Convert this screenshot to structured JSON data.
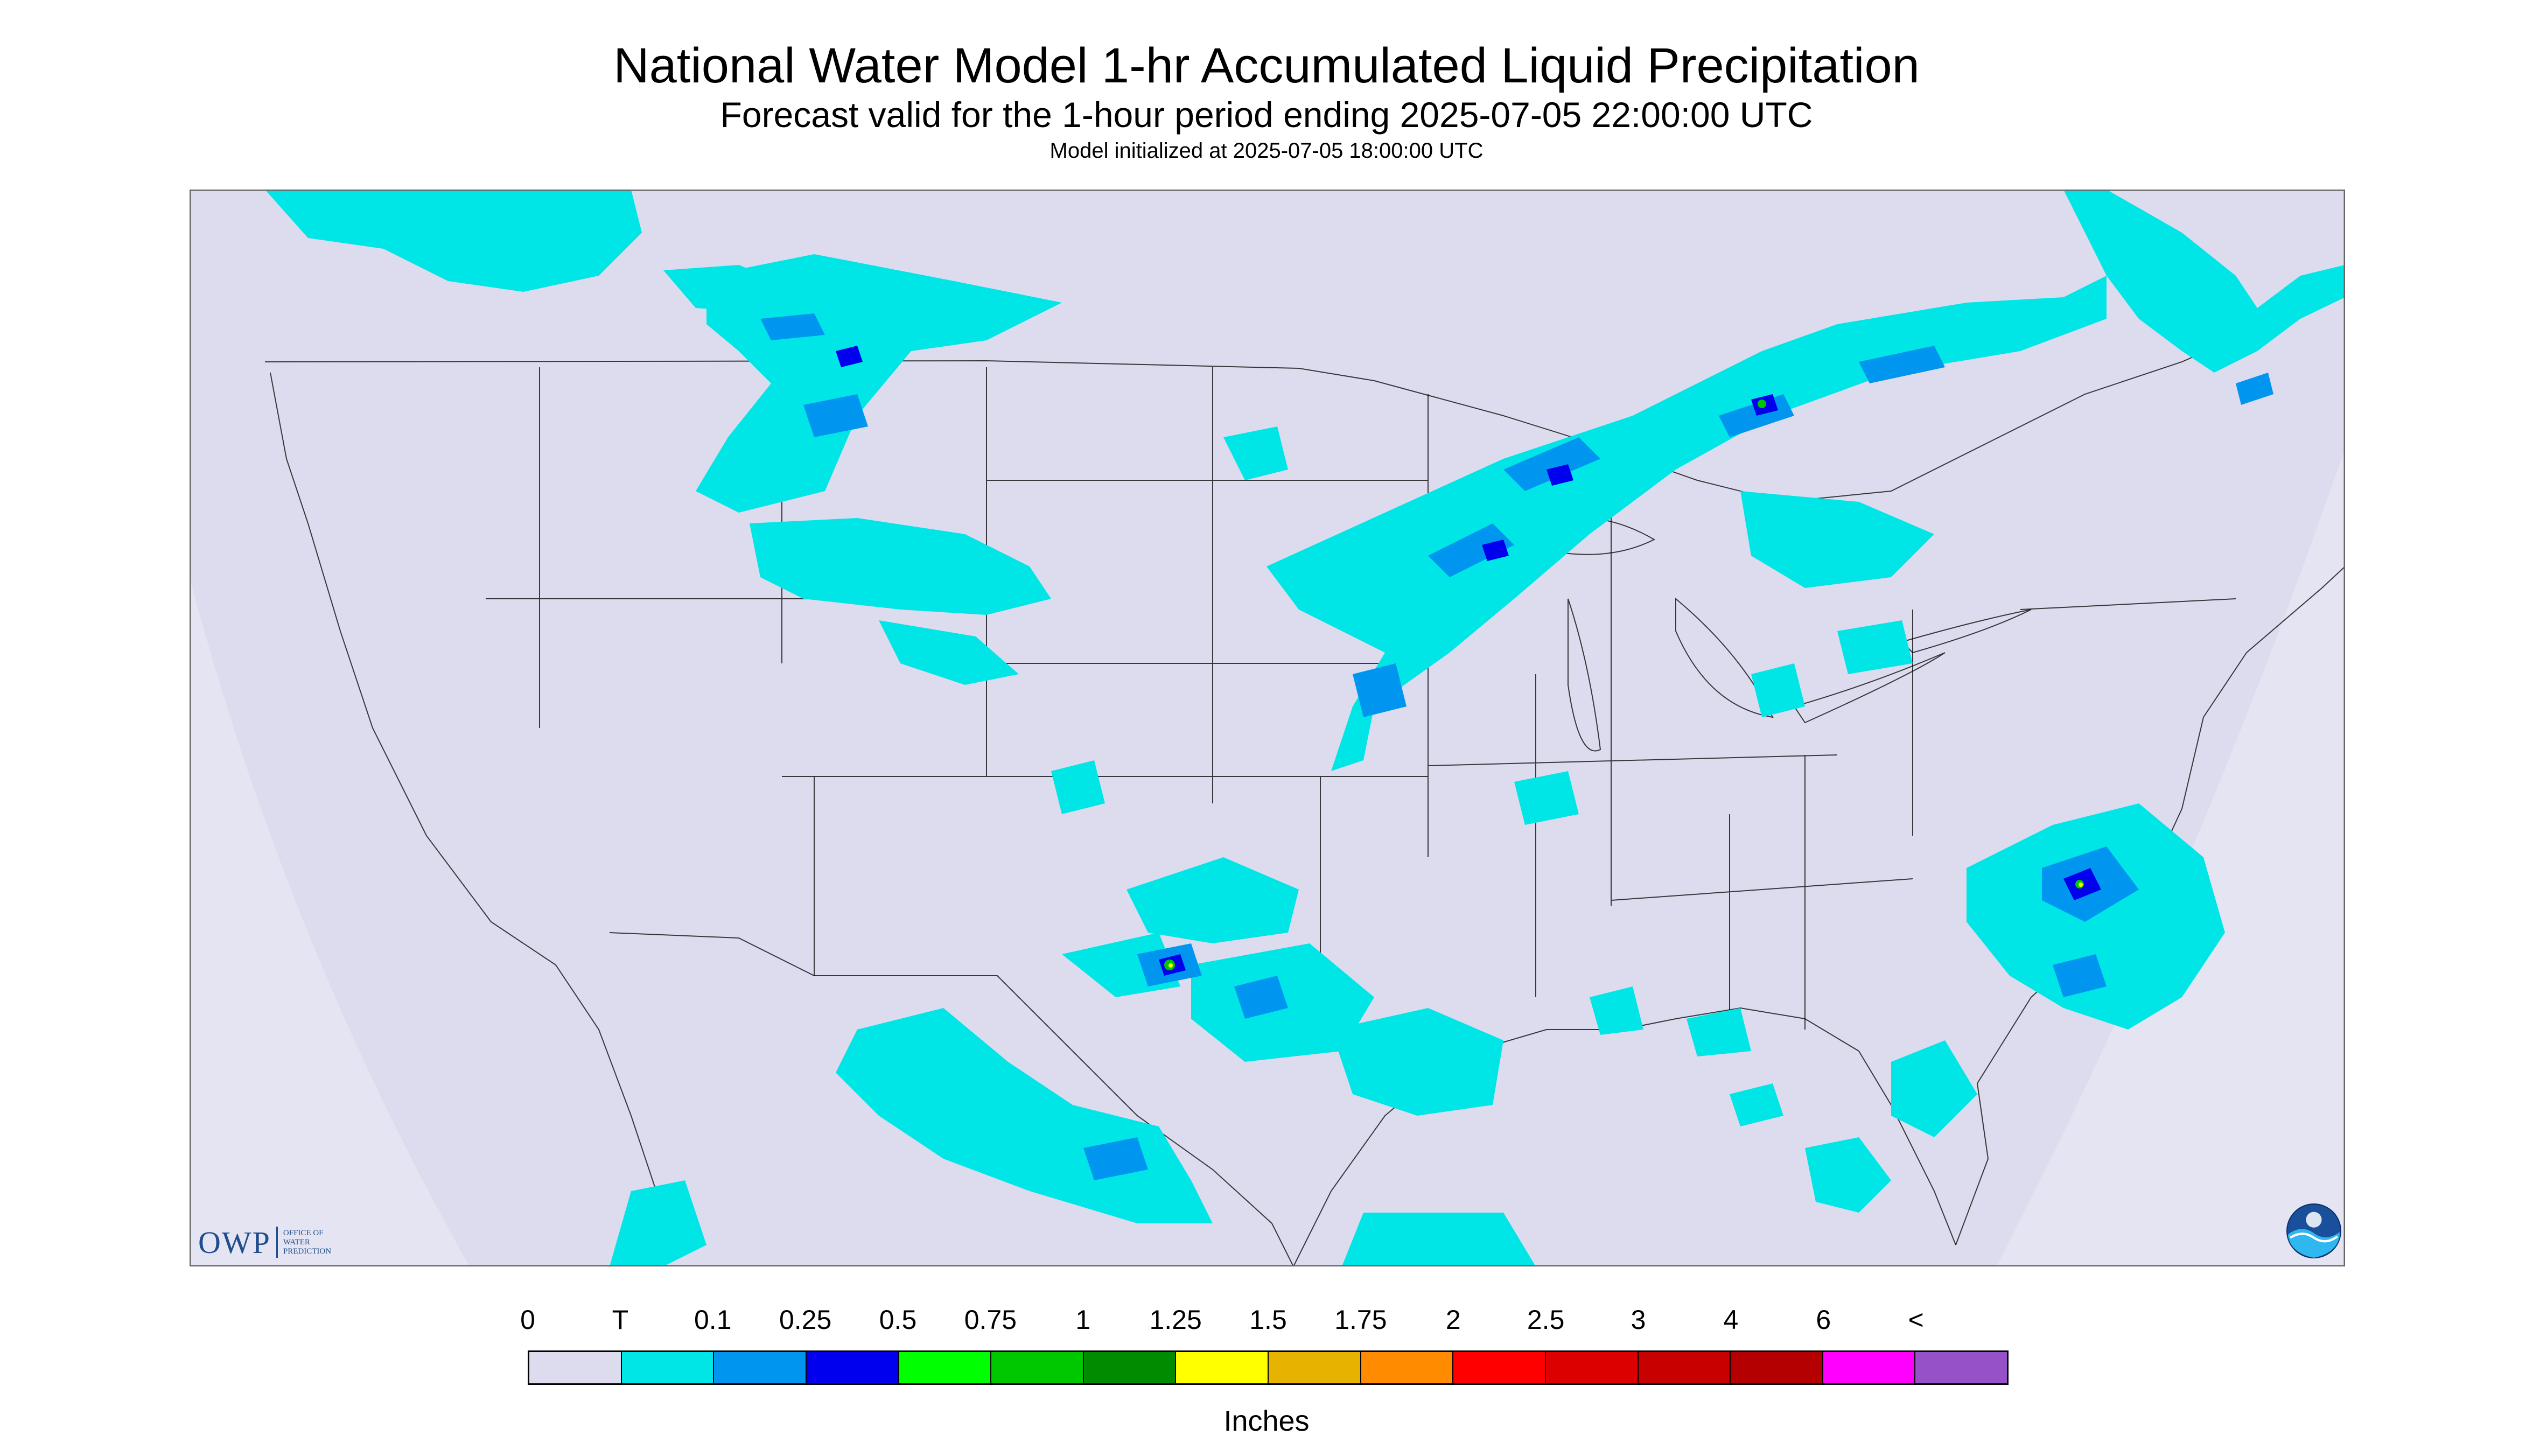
{
  "header": {
    "title": "National Water Model 1-hr Accumulated Liquid Precipitation",
    "subtitle": "Forecast valid for the 1-hour period ending 2025-07-05 22:00:00 UTC",
    "init_line": "Model initialized at 2025-07-05 18:00:00 UTC"
  },
  "legend": {
    "ticks": [
      "0",
      "T",
      "0.1",
      "0.25",
      "0.5",
      "0.75",
      "1",
      "1.25",
      "1.5",
      "1.75",
      "2",
      "2.5",
      "3",
      "4",
      "6",
      "<"
    ],
    "colors": [
      "#dcdcee",
      "#00e6e6",
      "#0096f0",
      "#0000ee",
      "#00ff00",
      "#00c800",
      "#008c00",
      "#ffff00",
      "#e6b400",
      "#ff8c00",
      "#ff0000",
      "#dc0000",
      "#c80000",
      "#b40000",
      "#ff00ff",
      "#9650c8"
    ],
    "units": "Inches"
  },
  "map": {
    "background_color": "#dcdcee",
    "outside_color": "#ffffff",
    "border_color": "#000000",
    "precip_light_color": "#00e6e6",
    "precip_medium_color": "#0096f0",
    "precip_heavy_color": "#0000ee",
    "precip_extreme_color": "#00c800"
  },
  "logos": {
    "owp": {
      "text": "OWP",
      "sub_lines": [
        "OFFICE OF",
        "WATER",
        "PREDICTION"
      ]
    },
    "noaa": {
      "icon": "noaa-logo-icon"
    }
  }
}
